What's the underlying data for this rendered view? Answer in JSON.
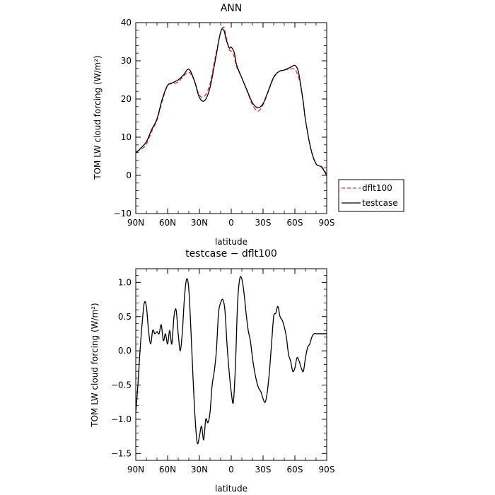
{
  "chart_data": [
    {
      "type": "line",
      "title": "ANN",
      "xlabel": "latitude",
      "ylabel": "TOM LW cloud forcing (W/m²)",
      "xlim": [
        90,
        -90
      ],
      "ylim": [
        -10,
        40
      ],
      "x_tick_values": [
        90,
        60,
        30,
        0,
        -30,
        -60,
        -90
      ],
      "x_tick_labels": [
        "90N",
        "60N",
        "30N",
        "0",
        "30S",
        "60S",
        "90S"
      ],
      "y_tick_values": [
        -10,
        0,
        10,
        20,
        30,
        40
      ],
      "y_tick_labels": [
        "−10",
        "0",
        "10",
        "20",
        "30",
        "40"
      ],
      "legend_placement": "right",
      "legend_labels": [
        "dflt100",
        "testcase"
      ],
      "series": [
        {
          "name": "dflt100",
          "color": "#e03030",
          "dash": true,
          "x": [
            90,
            85,
            80,
            75,
            70,
            65,
            60,
            55,
            50,
            45,
            40,
            35,
            30,
            25,
            20,
            15,
            10,
            7,
            5,
            2,
            0,
            -3,
            -5,
            -10,
            -15,
            -20,
            -25,
            -30,
            -35,
            -40,
            -45,
            -50,
            -55,
            -60,
            -63,
            -65,
            -68,
            -70,
            -75,
            -80,
            -85,
            -90
          ],
          "y": [
            6.2,
            6.8,
            8.2,
            11.5,
            14.5,
            19.5,
            23.5,
            24.0,
            24.5,
            26.0,
            27.0,
            25.0,
            21.0,
            20.8,
            24.0,
            31.0,
            37.5,
            38.8,
            36.5,
            33.0,
            32.5,
            31.0,
            28.5,
            25.5,
            22.0,
            18.5,
            16.8,
            18.5,
            22.0,
            25.5,
            27.2,
            27.6,
            27.8,
            27.8,
            26.0,
            24.0,
            19.0,
            14.5,
            7.0,
            3.0,
            2.4,
            0.3
          ]
        },
        {
          "name": "testcase",
          "color": "#000000",
          "dash": false,
          "x": [
            90,
            85,
            80,
            75,
            70,
            65,
            60,
            55,
            50,
            45,
            40,
            35,
            30,
            25,
            20,
            15,
            10,
            7,
            5,
            2,
            0,
            -3,
            -5,
            -10,
            -15,
            -20,
            -25,
            -30,
            -35,
            -40,
            -45,
            -50,
            -55,
            -60,
            -63,
            -65,
            -68,
            -70,
            -75,
            -80,
            -85,
            -90
          ],
          "y": [
            5.8,
            7.2,
            8.8,
            12.0,
            14.8,
            20.0,
            23.6,
            24.3,
            25.0,
            26.3,
            27.8,
            25.0,
            20.4,
            19.6,
            23.0,
            30.2,
            37.5,
            38.0,
            35.8,
            33.4,
            33.6,
            32.0,
            29.0,
            25.5,
            22.2,
            19.0,
            17.7,
            18.8,
            22.2,
            25.7,
            27.2,
            27.6,
            28.2,
            28.8,
            27.5,
            24.5,
            19.0,
            14.5,
            7.0,
            3.0,
            2.2,
            0.0
          ]
        }
      ]
    },
    {
      "type": "line",
      "title": "testcase − dflt100",
      "xlabel": "latitude",
      "ylabel": "TOM LW cloud forcing (W/m²)",
      "xlim": [
        90,
        -90
      ],
      "ylim": [
        -1.6,
        1.2
      ],
      "x_tick_values": [
        90,
        60,
        30,
        0,
        -30,
        -60,
        -90
      ],
      "x_tick_labels": [
        "90N",
        "60N",
        "30N",
        "0",
        "30S",
        "60S",
        "90S"
      ],
      "y_tick_values": [
        -1.5,
        -1.0,
        -0.5,
        0.0,
        0.5,
        1.0
      ],
      "y_tick_labels": [
        "−1.5",
        "−1.0",
        "−0.5",
        "0.0",
        "0.5",
        "1.0"
      ],
      "series": [
        {
          "color": "#000000",
          "dash": false,
          "x": [
            90,
            88,
            86,
            84,
            82,
            80,
            78,
            76,
            74,
            72,
            70,
            68,
            66,
            64,
            62,
            60,
            58,
            56,
            54,
            52,
            50,
            48,
            46,
            44,
            42,
            40,
            38,
            36,
            34,
            32,
            30,
            28,
            26,
            24,
            22,
            20,
            18,
            16,
            14,
            12,
            10,
            8,
            6,
            4,
            2,
            0,
            -2,
            -4,
            -6,
            -8,
            -10,
            -12,
            -14,
            -16,
            -18,
            -20,
            -22,
            -24,
            -26,
            -28,
            -30,
            -32,
            -34,
            -36,
            -38,
            -40,
            -42,
            -44,
            -46,
            -48,
            -50,
            -52,
            -54,
            -56,
            -58,
            -60,
            -62,
            -64,
            -66,
            -68,
            -70,
            -72,
            -74,
            -76,
            -78,
            -80,
            -82,
            -84,
            -86,
            -88,
            -90
          ],
          "y": [
            -0.9,
            -0.5,
            0.0,
            0.4,
            0.7,
            0.65,
            0.3,
            0.1,
            0.3,
            0.25,
            0.28,
            0.25,
            0.38,
            0.15,
            0.25,
            0.1,
            0.3,
            0.1,
            0.5,
            0.6,
            0.25,
            0.0,
            0.3,
            0.8,
            1.05,
            0.9,
            0.3,
            -0.4,
            -1.0,
            -1.35,
            -1.25,
            -1.1,
            -1.3,
            -1.0,
            -1.05,
            -0.9,
            -0.5,
            -0.3,
            0.0,
            0.55,
            0.7,
            0.75,
            0.6,
            0.1,
            -0.3,
            -0.6,
            -0.75,
            -0.2,
            0.7,
            1.05,
            1.05,
            0.85,
            0.55,
            0.3,
            0.15,
            -0.1,
            -0.3,
            -0.45,
            -0.55,
            -0.6,
            -0.7,
            -0.75,
            -0.6,
            -0.3,
            0.1,
            0.5,
            0.55,
            0.65,
            0.5,
            0.45,
            0.35,
            0.2,
            -0.05,
            -0.15,
            -0.3,
            -0.25,
            -0.1,
            -0.15,
            -0.25,
            -0.3,
            -0.1,
            0.05,
            0.1,
            0.2,
            0.25,
            0.25,
            0.25,
            0.25,
            0.25,
            0.25,
            0.25
          ]
        }
      ]
    }
  ]
}
